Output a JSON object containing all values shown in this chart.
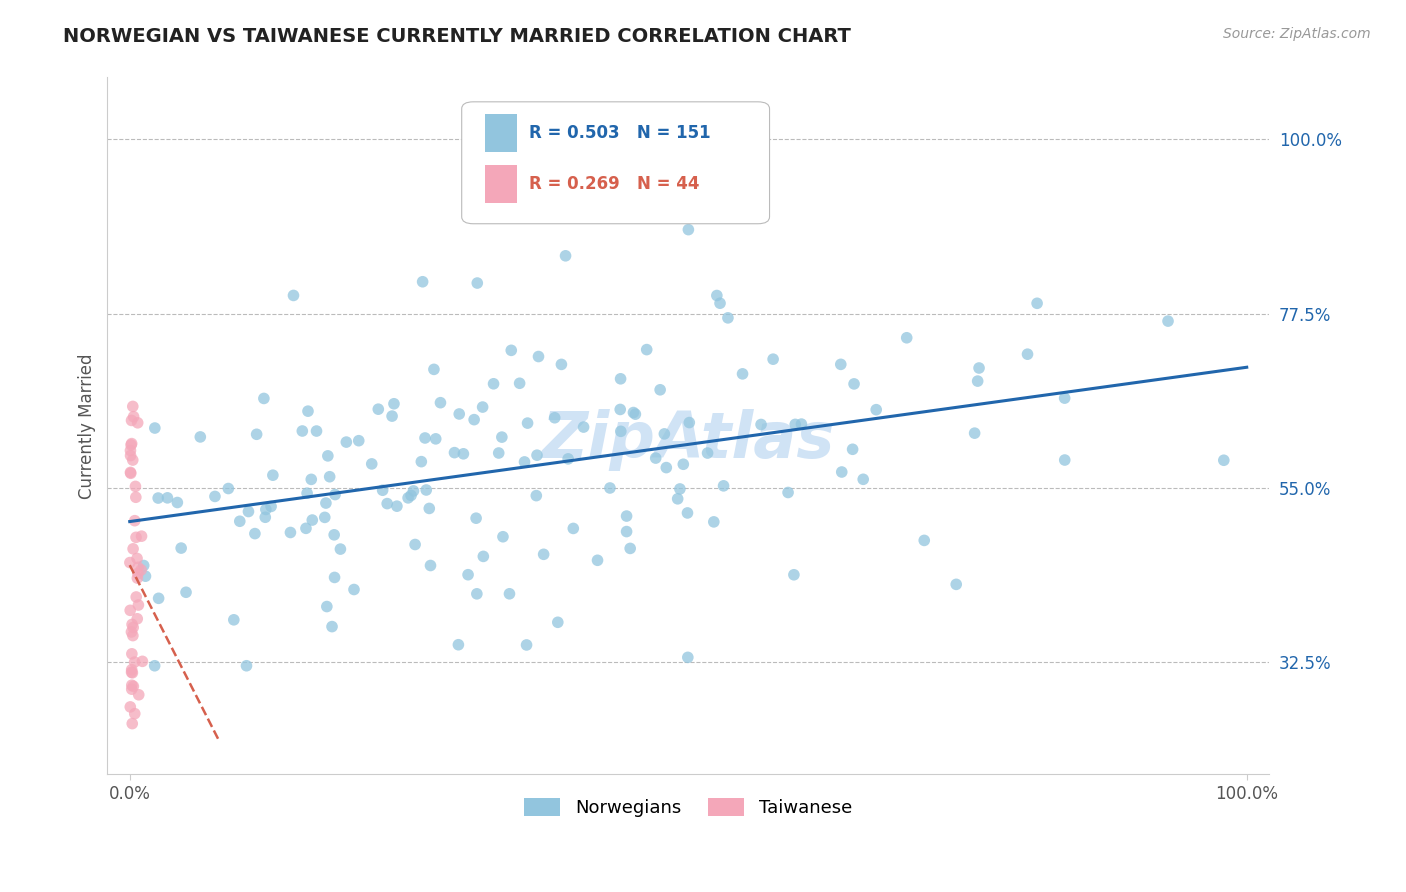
{
  "title": "NORWEGIAN VS TAIWANESE CURRENTLY MARRIED CORRELATION CHART",
  "source_text": "Source: ZipAtlas.com",
  "ylabel": "Currently Married",
  "watermark": "ZipAtlas",
  "legend_r1": "R = 0.503",
  "legend_n1": "N = 151",
  "legend_r2": "R = 0.269",
  "legend_n2": "N = 44",
  "legend_label1": "Norwegians",
  "legend_label2": "Taiwanese",
  "xlim": [
    -0.02,
    1.02
  ],
  "ylim": [
    0.18,
    1.08
  ],
  "ytick_labels": [
    "32.5%",
    "55.0%",
    "77.5%",
    "100.0%"
  ],
  "ytick_values": [
    0.325,
    0.55,
    0.775,
    1.0
  ],
  "hline_values": [
    0.325,
    0.55,
    0.775,
    1.0
  ],
  "blue_color": "#92c5de",
  "pink_color": "#f4a7b9",
  "blue_line_color": "#2166ac",
  "pink_line_color": "#d6604d",
  "title_color": "#222222",
  "grid_color": "#bbbbbb",
  "background_color": "#ffffff",
  "blue_trend_x0": 0.0,
  "blue_trend_y0": 0.515,
  "blue_trend_x1": 1.0,
  "blue_trend_y1": 0.695,
  "pink_trend_x0": 0.005,
  "pink_trend_y0": 0.68,
  "pink_trend_x1": 0.025,
  "pink_trend_y1": 0.58
}
